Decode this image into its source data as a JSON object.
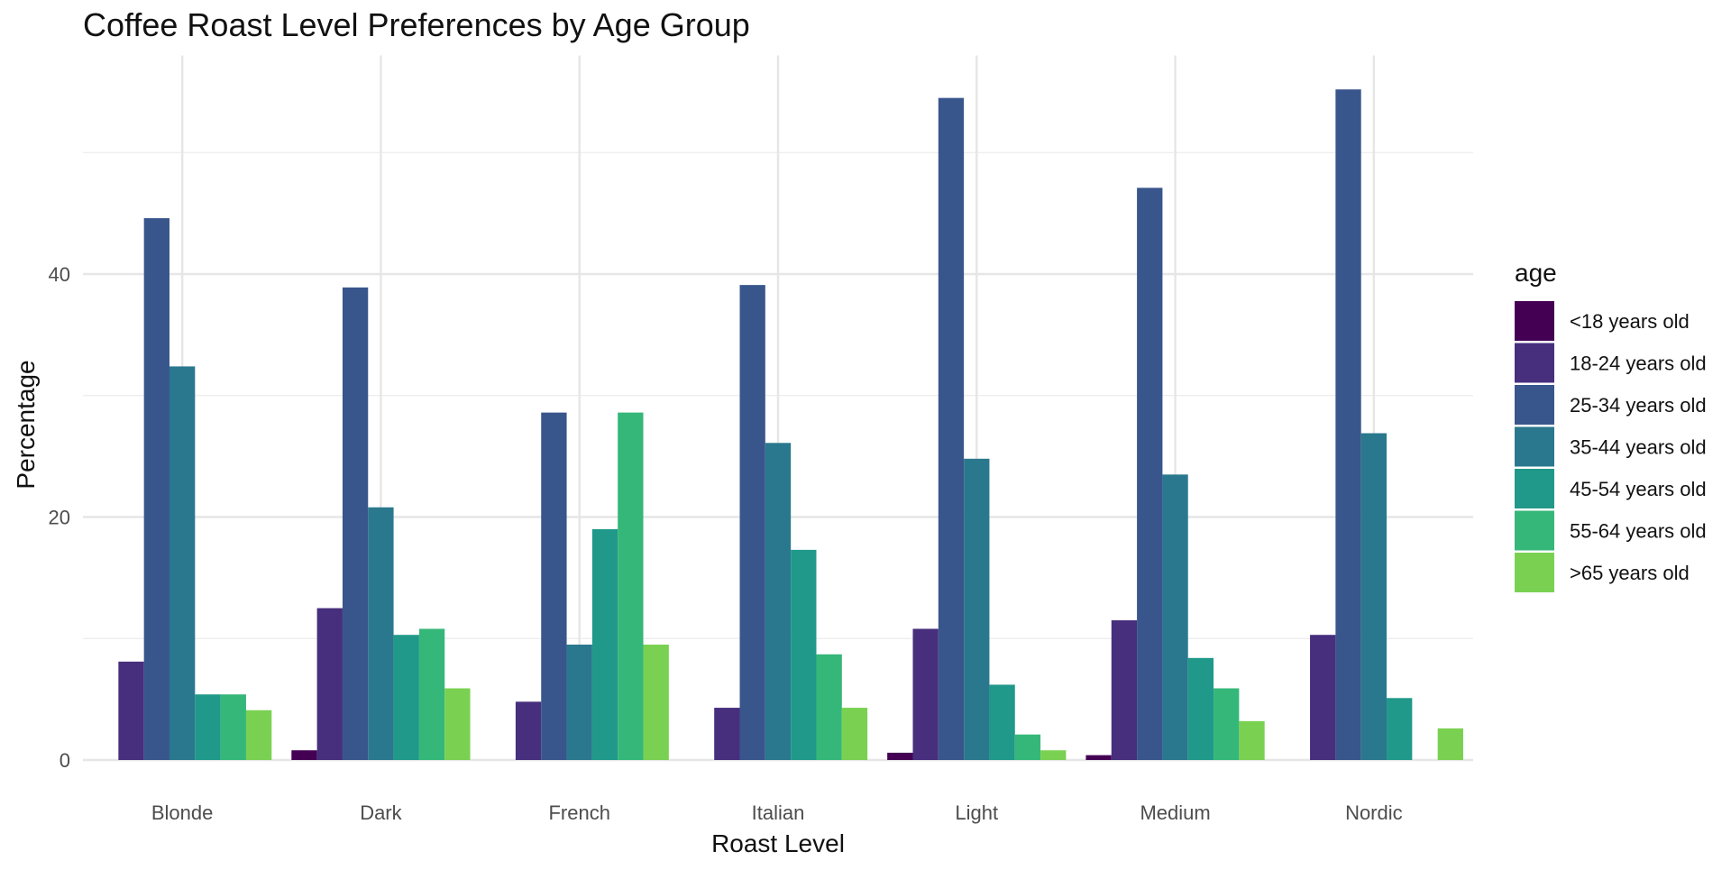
{
  "chart_data": {
    "type": "bar",
    "title": "Coffee Roast Level Preferences by Age Group",
    "xlabel": "Roast Level",
    "ylabel": "Percentage",
    "ylim": [
      0,
      58
    ],
    "yticks": [
      0,
      20,
      40
    ],
    "grid": true,
    "legend_title": "age",
    "legend_position": "right",
    "categories": [
      "Blonde",
      "Dark",
      "French",
      "Italian",
      "Light",
      "Medium",
      "Nordic"
    ],
    "series": [
      {
        "name": "<18 years old",
        "color": "#440154",
        "values": [
          0,
          0.8,
          0,
          0,
          0.6,
          0.4,
          0
        ]
      },
      {
        "name": "18-24 years old",
        "color": "#472F7D",
        "values": [
          8.1,
          12.5,
          4.8,
          4.3,
          10.8,
          11.5,
          10.3
        ]
      },
      {
        "name": "25-34 years old",
        "color": "#39568C",
        "values": [
          44.6,
          38.9,
          28.6,
          39.1,
          54.5,
          47.1,
          55.2
        ]
      },
      {
        "name": "35-44 years old",
        "color": "#2A788E",
        "values": [
          32.4,
          20.8,
          9.5,
          26.1,
          24.8,
          23.5,
          26.9
        ]
      },
      {
        "name": "45-54 years old",
        "color": "#20998A",
        "values": [
          5.4,
          10.3,
          19.0,
          17.3,
          6.2,
          8.4,
          5.1
        ]
      },
      {
        "name": "55-64 years old",
        "color": "#35B779",
        "values": [
          5.4,
          10.8,
          28.6,
          8.7,
          2.1,
          5.9,
          0
        ]
      },
      {
        "name": ">65 years old",
        "color": "#7AD151",
        "values": [
          4.1,
          5.9,
          9.5,
          4.3,
          0.8,
          3.2,
          2.6
        ]
      }
    ]
  }
}
